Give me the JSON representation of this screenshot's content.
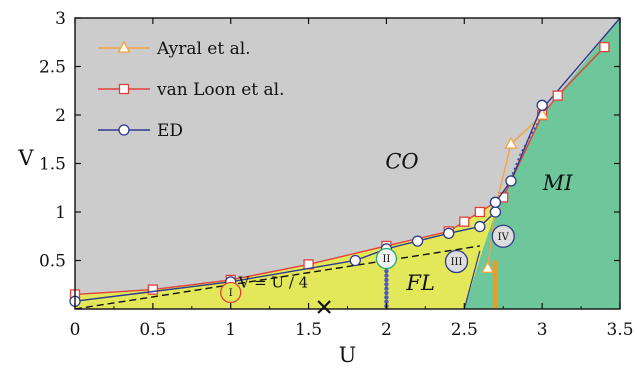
{
  "chart_data": {
    "type": "line",
    "xlabel": "U",
    "ylabel": "V",
    "xlim": [
      0,
      3.5
    ],
    "ylim": [
      0,
      3
    ],
    "x_ticks": [
      "0",
      "0.5",
      "1",
      "1.5",
      "2",
      "2.5",
      "3",
      "3.5"
    ],
    "y_ticks": [
      "0.5",
      "1",
      "1.5",
      "2",
      "2.5",
      "3"
    ],
    "legend_position": "top-left",
    "regions": [
      {
        "label": "CO",
        "color": "#cccccc",
        "x": 2.1,
        "y": 1.52
      },
      {
        "label": "FL",
        "color": "#e3e85a",
        "x": 2.22,
        "y": 0.27
      },
      {
        "label": "MI",
        "color": "#6dc79b",
        "x": 3.1,
        "y": 1.3
      }
    ],
    "series": [
      {
        "name": "Ayral et al.",
        "color": "#f4a340",
        "marker": "triangle",
        "points": [
          [
            2.65,
            0.42
          ],
          [
            2.7,
            1.05
          ],
          [
            2.8,
            1.7
          ],
          [
            3.0,
            2.0
          ]
        ]
      },
      {
        "name": "van Loon et al.",
        "color": "#e2403a",
        "marker": "square",
        "points": [
          [
            0.0,
            0.15
          ],
          [
            0.5,
            0.2
          ],
          [
            1.0,
            0.3
          ],
          [
            1.5,
            0.46
          ],
          [
            2.0,
            0.65
          ],
          [
            2.4,
            0.8
          ],
          [
            2.5,
            0.9
          ],
          [
            2.6,
            1.0
          ],
          [
            2.75,
            1.15
          ],
          [
            3.0,
            2.0
          ],
          [
            3.1,
            2.2
          ],
          [
            3.4,
            2.7
          ]
        ]
      },
      {
        "name": "ED",
        "color": "#2e3a8c",
        "marker": "circle",
        "points": [
          [
            0.0,
            0.08
          ],
          [
            1.0,
            0.28
          ],
          [
            1.8,
            0.5
          ],
          [
            2.0,
            0.62
          ],
          [
            2.2,
            0.7
          ],
          [
            2.4,
            0.78
          ],
          [
            2.6,
            0.85
          ],
          [
            2.7,
            1.0
          ],
          [
            2.7,
            1.1
          ],
          [
            2.8,
            1.32
          ],
          [
            3.0,
            2.1
          ]
        ]
      }
    ],
    "annotations": [
      {
        "text": "V = U / 4",
        "x": 1.05,
        "y": 0.22
      },
      {
        "text": "I",
        "x": 1.0,
        "y": 0.17
      },
      {
        "text": "II",
        "x": 2.0,
        "y": 0.52
      },
      {
        "text": "III",
        "x": 2.45,
        "y": 0.49
      },
      {
        "text": "IV",
        "x": 2.75,
        "y": 0.75
      }
    ]
  }
}
